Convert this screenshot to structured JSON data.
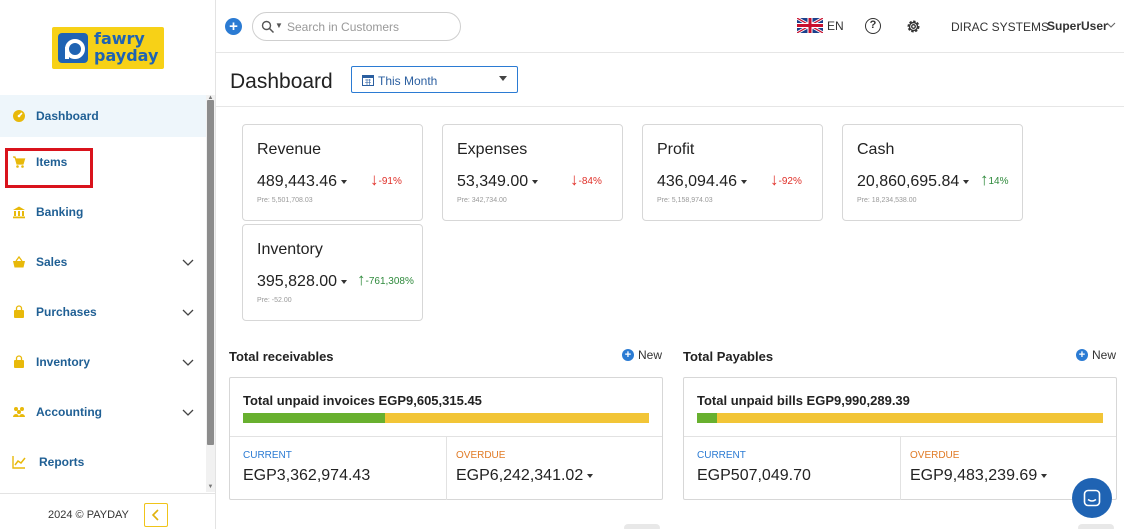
{
  "brand": {
    "logo_line1": "fawry",
    "logo_line2": "payday"
  },
  "sidebar": {
    "items": [
      {
        "label": "Dashboard",
        "icon": "dashboard-icon",
        "active": true
      },
      {
        "label": "Items",
        "icon": "cart-icon"
      },
      {
        "label": "Banking",
        "icon": "bank-icon"
      },
      {
        "label": "Sales",
        "icon": "bag-icon",
        "expandable": true
      },
      {
        "label": "Purchases",
        "icon": "bag-icon",
        "expandable": true
      },
      {
        "label": "Inventory",
        "icon": "bag-icon",
        "expandable": true
      },
      {
        "label": "Accounting",
        "icon": "people-icon",
        "expandable": true
      },
      {
        "label": "Reports",
        "icon": "chart-icon"
      }
    ],
    "footer": {
      "copyright": "2024 © PAYDAY",
      "collapse_icon": "chevron-left-icon"
    }
  },
  "topbar": {
    "search_placeholder": "Search in Customers",
    "language": "EN",
    "company": "DIRAC SYSTEMS",
    "user": "SuperUser"
  },
  "header": {
    "title": "Dashboard",
    "period": "This Month"
  },
  "kpis": [
    {
      "title": "Revenue",
      "value": "489,443.46",
      "trend": "-91%",
      "direction": "down",
      "pre": "Pre: 5,501,708.03"
    },
    {
      "title": "Expenses",
      "value": "53,349.00",
      "trend": "-84%",
      "direction": "down",
      "pre": "Pre: 342,734.00"
    },
    {
      "title": "Profit",
      "value": "436,094.46",
      "trend": "-92%",
      "direction": "down",
      "pre": "Pre: 5,158,974.03"
    },
    {
      "title": "Cash",
      "value": "20,860,695.84",
      "trend": "14%",
      "direction": "up",
      "pre": "Pre: 18,234,538.00"
    },
    {
      "title": "Inventory",
      "value": "395,828.00",
      "trend": "-761,308%",
      "direction": "up",
      "pre": "Pre: -52.00"
    }
  ],
  "receivables": {
    "section_title": "Total receivables",
    "new_label": "New",
    "summary": "Total unpaid invoices EGP9,605,315.45",
    "current_fraction": 0.35,
    "current_label": "CURRENT",
    "current_amount": "EGP3,362,974.43",
    "overdue_label": "OVERDUE",
    "overdue_amount": "EGP6,242,341.02"
  },
  "payables": {
    "section_title": "Total Payables",
    "new_label": "New",
    "summary": "Total unpaid bills EGP9,990,289.39",
    "current_fraction": 0.05,
    "current_label": "CURRENT",
    "current_amount": "EGP507,049.70",
    "overdue_label": "OVERDUE",
    "overdue_amount": "EGP9,483,239.69"
  },
  "colors": {
    "primary": "#1f63b3",
    "brand_yellow": "#f7d117",
    "current_bar": "#68b02f",
    "overdue_bar": "#f2c537",
    "down_trend": "#e0312a",
    "up_trend": "#2f8a3c",
    "highlight_box": "#d9131c"
  }
}
